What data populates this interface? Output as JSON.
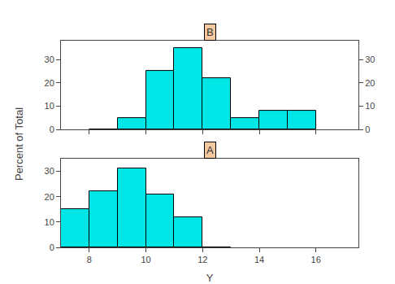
{
  "chart_data": [
    {
      "type": "histogram",
      "title": "B",
      "ylabel": "Percent of Total",
      "bins": [
        8,
        9,
        10,
        11,
        12,
        13,
        14,
        15,
        16
      ],
      "values": [
        0,
        5,
        25,
        35,
        22,
        5,
        8,
        8
      ],
      "color": "#00E5E5",
      "xlim": [
        7,
        17.5
      ],
      "xticks": [
        8,
        10,
        12,
        14,
        16
      ],
      "ylim": [
        0,
        38
      ],
      "yticks": [
        0,
        10,
        20,
        30
      ],
      "y2lim": [
        0,
        38
      ],
      "y2ticks": [
        0,
        10,
        20,
        30
      ],
      "tick_labels": "y",
      "grid": false
    },
    {
      "type": "histogram",
      "title": "A",
      "xlabel": "Y",
      "bins": [
        7,
        8,
        9,
        10,
        11,
        12,
        13
      ],
      "values": [
        15,
        22,
        31,
        21,
        12,
        0
      ],
      "color": "#00E5E5",
      "xlim": [
        7,
        17.5
      ],
      "xticks": [
        8,
        10,
        12,
        14,
        16
      ],
      "ylim": [
        0,
        35
      ],
      "yticks": [
        0,
        10,
        20,
        30
      ],
      "grid": false
    }
  ]
}
